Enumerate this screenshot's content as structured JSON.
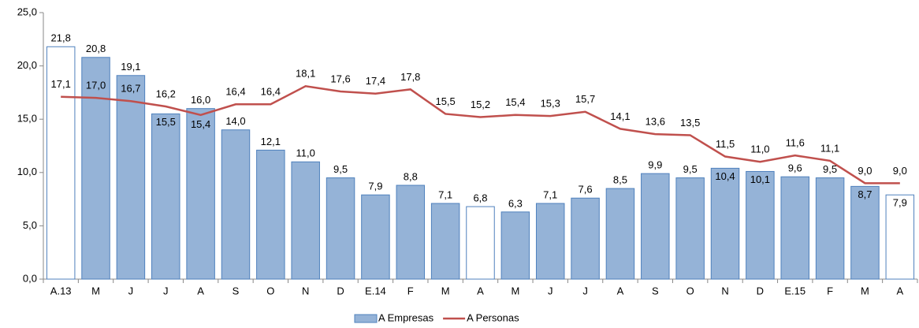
{
  "chart_data": {
    "type": "bar-line",
    "categories": [
      "A.13",
      "M",
      "J",
      "J",
      "A",
      "S",
      "O",
      "N",
      "D",
      "E.14",
      "F",
      "M",
      "A",
      "M",
      "J",
      "J",
      "A",
      "S",
      "O",
      "N",
      "D",
      "E.15",
      "F",
      "M",
      "A"
    ],
    "series": [
      {
        "name": "A Empresas",
        "type": "bar",
        "color": "#95b3d7",
        "edge_color": "#4f81bd",
        "colors": [
          "#ffffff",
          "#95b3d7",
          "#95b3d7",
          "#95b3d7",
          "#95b3d7",
          "#95b3d7",
          "#95b3d7",
          "#95b3d7",
          "#95b3d7",
          "#95b3d7",
          "#95b3d7",
          "#95b3d7",
          "#ffffff",
          "#95b3d7",
          "#95b3d7",
          "#95b3d7",
          "#95b3d7",
          "#95b3d7",
          "#95b3d7",
          "#95b3d7",
          "#95b3d7",
          "#95b3d7",
          "#95b3d7",
          "#95b3d7",
          "#ffffff"
        ],
        "values": [
          21.8,
          20.8,
          19.1,
          15.5,
          16.0,
          14.0,
          12.1,
          11.0,
          9.5,
          7.9,
          8.8,
          7.1,
          6.8,
          6.3,
          7.1,
          7.6,
          8.5,
          9.9,
          9.5,
          10.4,
          10.1,
          9.6,
          9.5,
          8.7,
          7.9
        ],
        "value_labels": [
          "21,8",
          "20,8",
          "19,1",
          "15,5",
          "16,0",
          "14,0",
          "12,1",
          "11,0",
          "9,5",
          "7,9",
          "8,8",
          "7,1",
          "6,8",
          "6,3",
          "7,1",
          "7,6",
          "8,5",
          "9,9",
          "9,5",
          "10,4",
          "10,1",
          "9,6",
          "9,5",
          "8,7",
          "7,9"
        ]
      },
      {
        "name": "A Personas",
        "type": "line",
        "color": "#c0504d",
        "values": [
          17.1,
          17.0,
          16.7,
          16.2,
          15.4,
          16.4,
          16.4,
          18.1,
          17.6,
          17.4,
          17.8,
          15.5,
          15.2,
          15.4,
          15.3,
          15.7,
          14.1,
          13.6,
          13.5,
          11.5,
          11.0,
          11.6,
          11.1,
          9.0,
          9.0
        ],
        "value_labels": [
          "17,1",
          "17,0",
          "16,7",
          "16,2",
          "15,4",
          "16,4",
          "16,4",
          "18,1",
          "17,6",
          "17,4",
          "17,8",
          "15,5",
          "15,2",
          "15,4",
          "15,3",
          "15,7",
          "14,1",
          "13,6",
          "13,5",
          "11,5",
          "11,0",
          "11,6",
          "11,1",
          "9,0",
          "9,0"
        ]
      }
    ],
    "ylim": [
      0,
      25
    ],
    "yticks": [
      {
        "value": 0,
        "label": "0,0"
      },
      {
        "value": 5,
        "label": "5,0"
      },
      {
        "value": 10,
        "label": "10,0"
      },
      {
        "value": 15,
        "label": "15,0"
      },
      {
        "value": 20,
        "label": "20,0"
      },
      {
        "value": 25,
        "label": "25,0"
      }
    ],
    "grid": false,
    "legend": "bottom"
  }
}
